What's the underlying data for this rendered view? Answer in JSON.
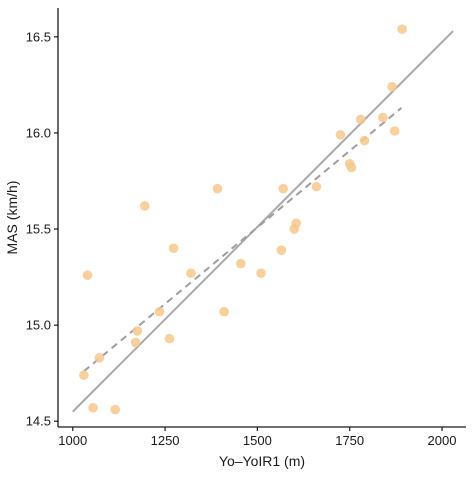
{
  "chart_data": {
    "type": "scatter",
    "title": "",
    "xlabel": "Yo–YoIR1 (m)",
    "ylabel": "MAS (km/h)",
    "xlim": [
      960,
      2065
    ],
    "ylim": [
      14.47,
      16.65
    ],
    "xticks": [
      1000,
      1250,
      1500,
      1750,
      2000
    ],
    "xtick_labels": [
      "1000",
      "1250",
      "1500",
      "1750",
      "2000"
    ],
    "yticks": [
      14.5,
      15.0,
      15.5,
      16.0,
      16.5
    ],
    "ytick_labels": [
      "14.5",
      "15.0",
      "15.5",
      "16.0",
      "16.5"
    ],
    "grid": false,
    "legend": "none",
    "point_color": "#f6c88b",
    "solid_line_color": "#a9a9a9",
    "dashed_line_color": "#9e9e9e",
    "points": [
      {
        "x": 1030,
        "y": 14.74
      },
      {
        "x": 1040,
        "y": 15.26
      },
      {
        "x": 1055,
        "y": 14.57
      },
      {
        "x": 1072,
        "y": 14.83
      },
      {
        "x": 1115,
        "y": 14.56
      },
      {
        "x": 1170,
        "y": 14.91
      },
      {
        "x": 1175,
        "y": 14.97
      },
      {
        "x": 1195,
        "y": 15.62
      },
      {
        "x": 1235,
        "y": 15.07
      },
      {
        "x": 1262,
        "y": 14.93
      },
      {
        "x": 1273,
        "y": 15.4
      },
      {
        "x": 1320,
        "y": 15.27
      },
      {
        "x": 1392,
        "y": 15.71
      },
      {
        "x": 1410,
        "y": 15.07
      },
      {
        "x": 1455,
        "y": 15.32
      },
      {
        "x": 1510,
        "y": 15.27
      },
      {
        "x": 1565,
        "y": 15.39
      },
      {
        "x": 1570,
        "y": 15.71
      },
      {
        "x": 1600,
        "y": 15.5
      },
      {
        "x": 1605,
        "y": 15.53
      },
      {
        "x": 1660,
        "y": 15.72
      },
      {
        "x": 1725,
        "y": 15.99
      },
      {
        "x": 1750,
        "y": 15.84
      },
      {
        "x": 1755,
        "y": 15.82
      },
      {
        "x": 1780,
        "y": 16.07
      },
      {
        "x": 1790,
        "y": 15.96
      },
      {
        "x": 1840,
        "y": 16.08
      },
      {
        "x": 1865,
        "y": 16.24
      },
      {
        "x": 1872,
        "y": 16.01
      },
      {
        "x": 1892,
        "y": 16.54
      }
    ],
    "solid_line": {
      "x": [
        1000,
        2030
      ],
      "y": [
        14.55,
        16.53
      ]
    },
    "dashed_line": {
      "x": [
        1030,
        1890
      ],
      "y": [
        14.76,
        16.13
      ]
    }
  }
}
